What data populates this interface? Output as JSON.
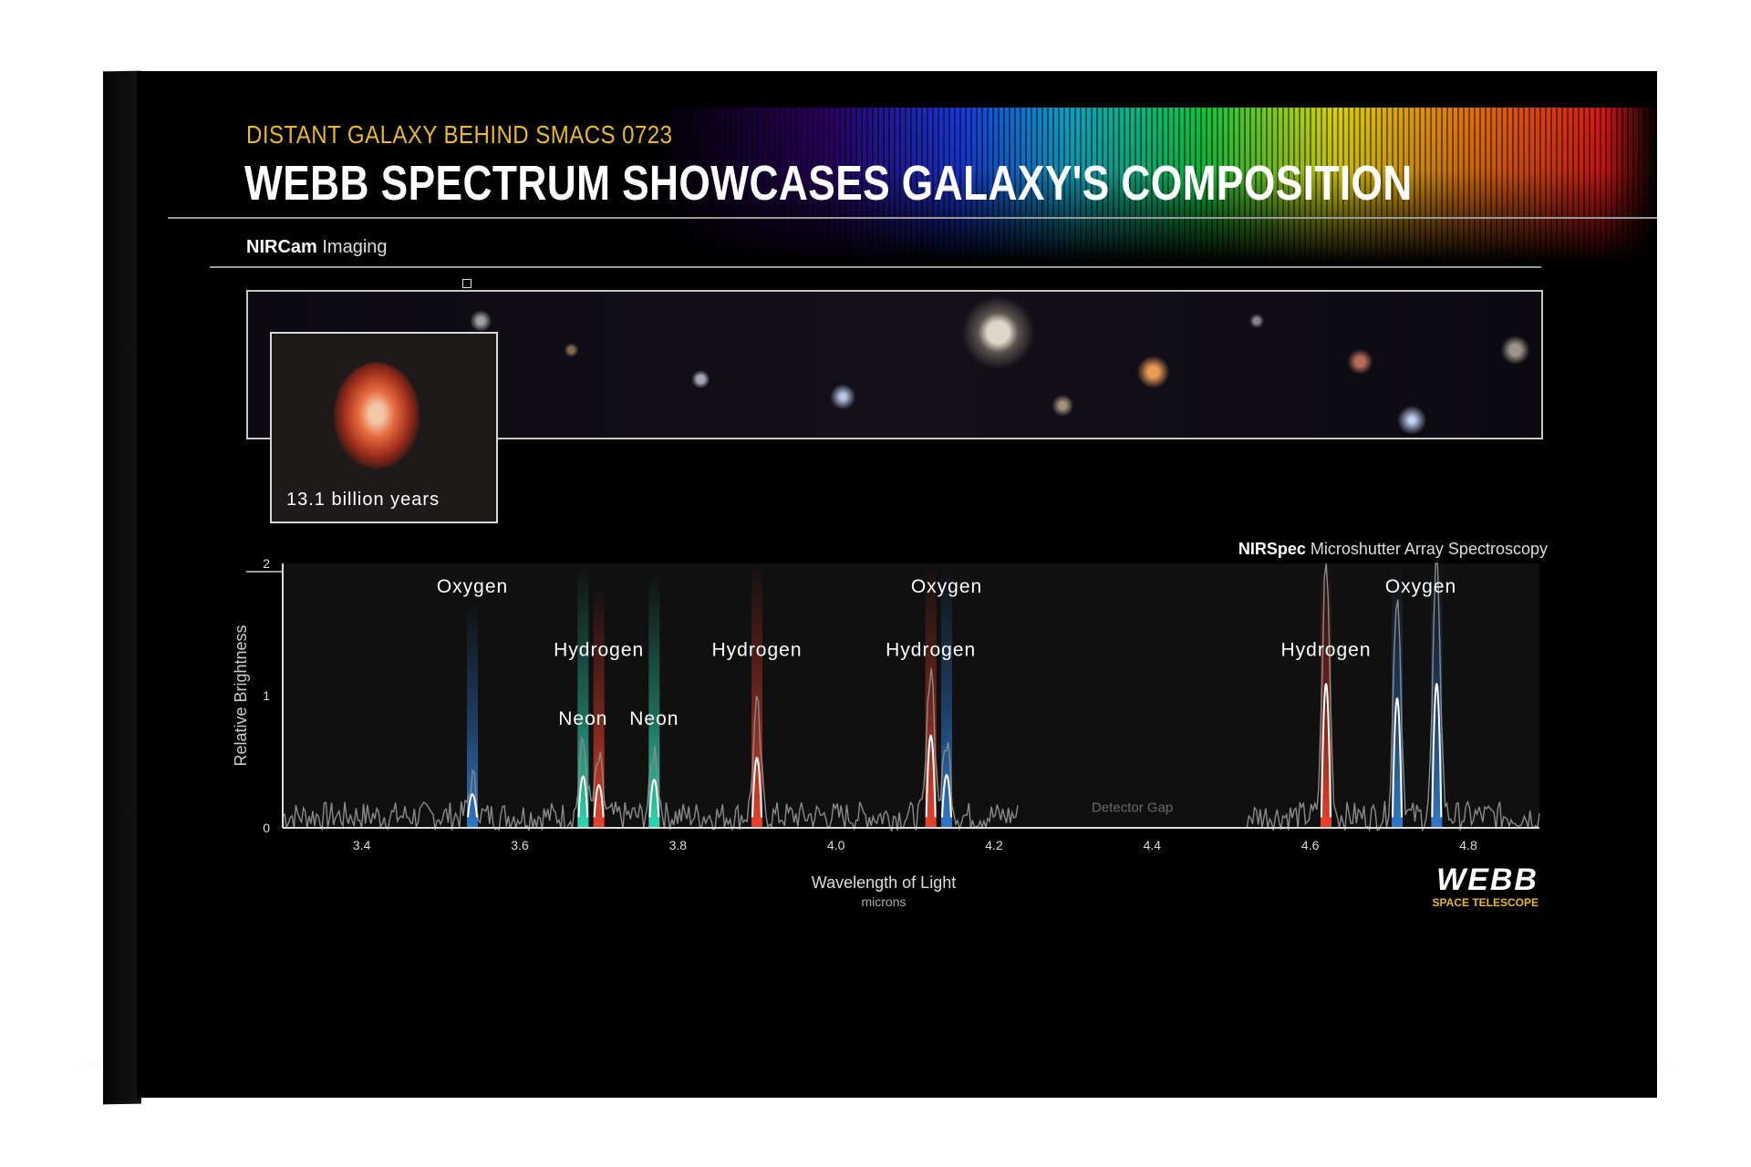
{
  "header": {
    "eyebrow": "DISTANT GALAXY BEHIND SMACS 0723",
    "headline": "WEBB SPECTRUM SHOWCASES GALAXY'S COMPOSITION"
  },
  "imaging": {
    "instrument": "NIRCam",
    "mode": "Imaging",
    "inset_caption": "13.1 billion years"
  },
  "spectroscopy": {
    "instrument": "NIRSpec",
    "mode": "Microshutter Array Spectroscopy"
  },
  "logo": {
    "word": "WEBB",
    "sub": "SPACE TELESCOPE"
  },
  "colors": {
    "oxygen": "#2f78c8",
    "hydrogen": "#e8422a",
    "neon": "#2fd6b0",
    "accent_yellow": "#e8b733"
  },
  "chart_data": {
    "type": "line",
    "title": "",
    "xlabel": "Wavelength of Light",
    "xlabel_unit": "microns",
    "ylabel": "Relative Brightness",
    "xlim": [
      3.3,
      4.89
    ],
    "ylim": [
      0,
      2
    ],
    "x_ticks": [
      "3.4",
      "3.6",
      "3.8",
      "4.0",
      "4.2",
      "4.4",
      "4.6",
      "4.8"
    ],
    "y_ticks": [
      "0",
      "1",
      "2"
    ],
    "detector_gap": {
      "label": "Detector Gap",
      "from": 4.23,
      "to": 4.52
    },
    "emission_lines": [
      {
        "element": "Oxygen",
        "wavelength": 3.54,
        "peak": 0.33,
        "color": "oxygen"
      },
      {
        "element": "Neon",
        "wavelength": 3.68,
        "peak": 0.6,
        "color": "neon"
      },
      {
        "element": "Hydrogen",
        "wavelength": 3.7,
        "peak": 0.47,
        "color": "hydrogen"
      },
      {
        "element": "Neon",
        "wavelength": 3.77,
        "peak": 0.55,
        "color": "neon"
      },
      {
        "element": "Hydrogen",
        "wavelength": 3.9,
        "peak": 0.88,
        "color": "hydrogen"
      },
      {
        "element": "Hydrogen",
        "wavelength": 4.12,
        "peak": 1.22,
        "color": "hydrogen"
      },
      {
        "element": "Oxygen",
        "wavelength": 4.14,
        "peak": 0.62,
        "color": "oxygen"
      },
      {
        "element": "Hydrogen",
        "wavelength": 4.62,
        "peak": 2.0,
        "color": "hydrogen"
      },
      {
        "element": "Oxygen",
        "wavelength": 4.71,
        "peak": 1.78,
        "color": "oxygen"
      },
      {
        "element": "Oxygen",
        "wavelength": 4.76,
        "peak": 2.0,
        "color": "oxygen"
      }
    ],
    "labels": [
      {
        "text": "Oxygen",
        "wavelength": 3.54,
        "level": 1.78
      },
      {
        "text": "Hydrogen",
        "wavelength": 3.7,
        "level": 1.3
      },
      {
        "text": "Neon",
        "wavelength": 3.68,
        "level": 0.78
      },
      {
        "text": "Neon",
        "wavelength": 3.77,
        "level": 0.78
      },
      {
        "text": "Hydrogen",
        "wavelength": 3.9,
        "level": 1.3
      },
      {
        "text": "Oxygen",
        "wavelength": 4.14,
        "level": 1.78
      },
      {
        "text": "Hydrogen",
        "wavelength": 4.12,
        "level": 1.3
      },
      {
        "text": "Hydrogen",
        "wavelength": 4.62,
        "level": 1.3
      },
      {
        "text": "Oxygen",
        "wavelength": 4.74,
        "level": 1.78
      }
    ]
  }
}
